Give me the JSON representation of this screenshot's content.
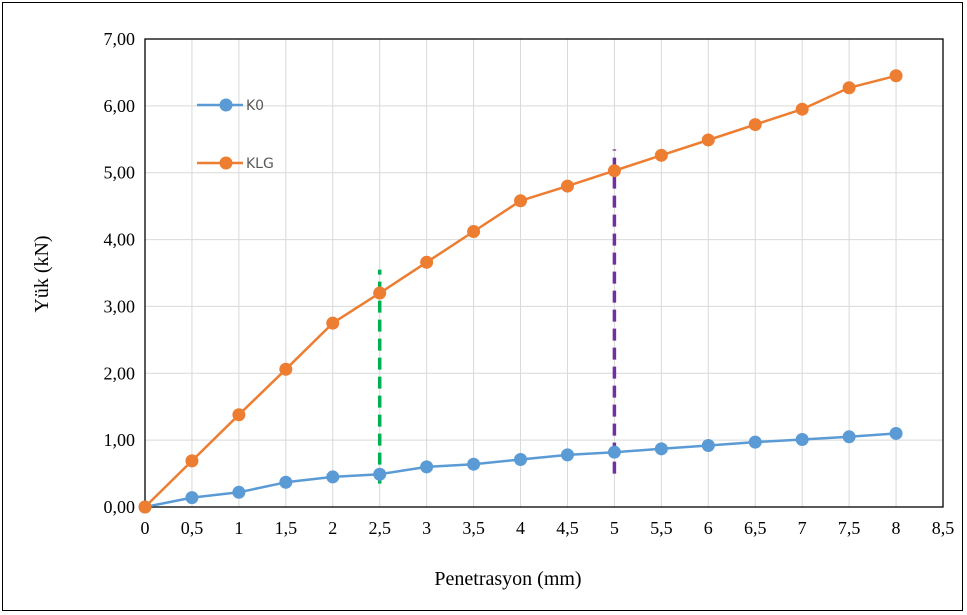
{
  "chart_data": {
    "type": "line",
    "title": "",
    "xlabel": "Penetrasyon (mm)",
    "ylabel": "Yük (kN)",
    "xlim": [
      0,
      8.5
    ],
    "ylim": [
      0,
      7
    ],
    "x_ticks": [
      "0",
      "0,5",
      "1",
      "1,5",
      "2",
      "2,5",
      "3",
      "3,5",
      "4",
      "4,5",
      "5",
      "5,5",
      "6",
      "6,5",
      "7",
      "7,5",
      "8",
      "8,5"
    ],
    "y_ticks": [
      "0,00",
      "1,00",
      "2,00",
      "3,00",
      "4,00",
      "5,00",
      "6,00",
      "7,00"
    ],
    "grid": true,
    "legend_position": "top-left",
    "x": [
      0,
      0.5,
      1,
      1.5,
      2,
      2.5,
      3,
      3.5,
      4,
      4.5,
      5,
      5.5,
      6,
      6.5,
      7,
      7.5,
      8
    ],
    "series": [
      {
        "name": "K0",
        "color": "#5B9BD5",
        "values": [
          0,
          0.14,
          0.22,
          0.37,
          0.45,
          0.49,
          0.6,
          0.64,
          0.71,
          0.78,
          0.82,
          0.87,
          0.92,
          0.97,
          1.01,
          1.05,
          1.1
        ]
      },
      {
        "name": "KLG",
        "color": "#ED7D31",
        "values": [
          0,
          0.69,
          1.38,
          2.06,
          2.75,
          3.2,
          3.66,
          4.12,
          4.58,
          4.8,
          5.03,
          5.26,
          5.49,
          5.72,
          5.95,
          6.27,
          6.45
        ]
      }
    ],
    "reference_lines": [
      {
        "x": 2.5,
        "y_range": [
          0.35,
          3.55
        ],
        "color": "#00B050",
        "style": "dashed"
      },
      {
        "x": 5,
        "y_range": [
          0.5,
          5.35
        ],
        "color": "#7030A0",
        "style": "dashed"
      }
    ],
    "colors": {
      "grid": "#D9D9D9",
      "axis": "#000000"
    }
  }
}
